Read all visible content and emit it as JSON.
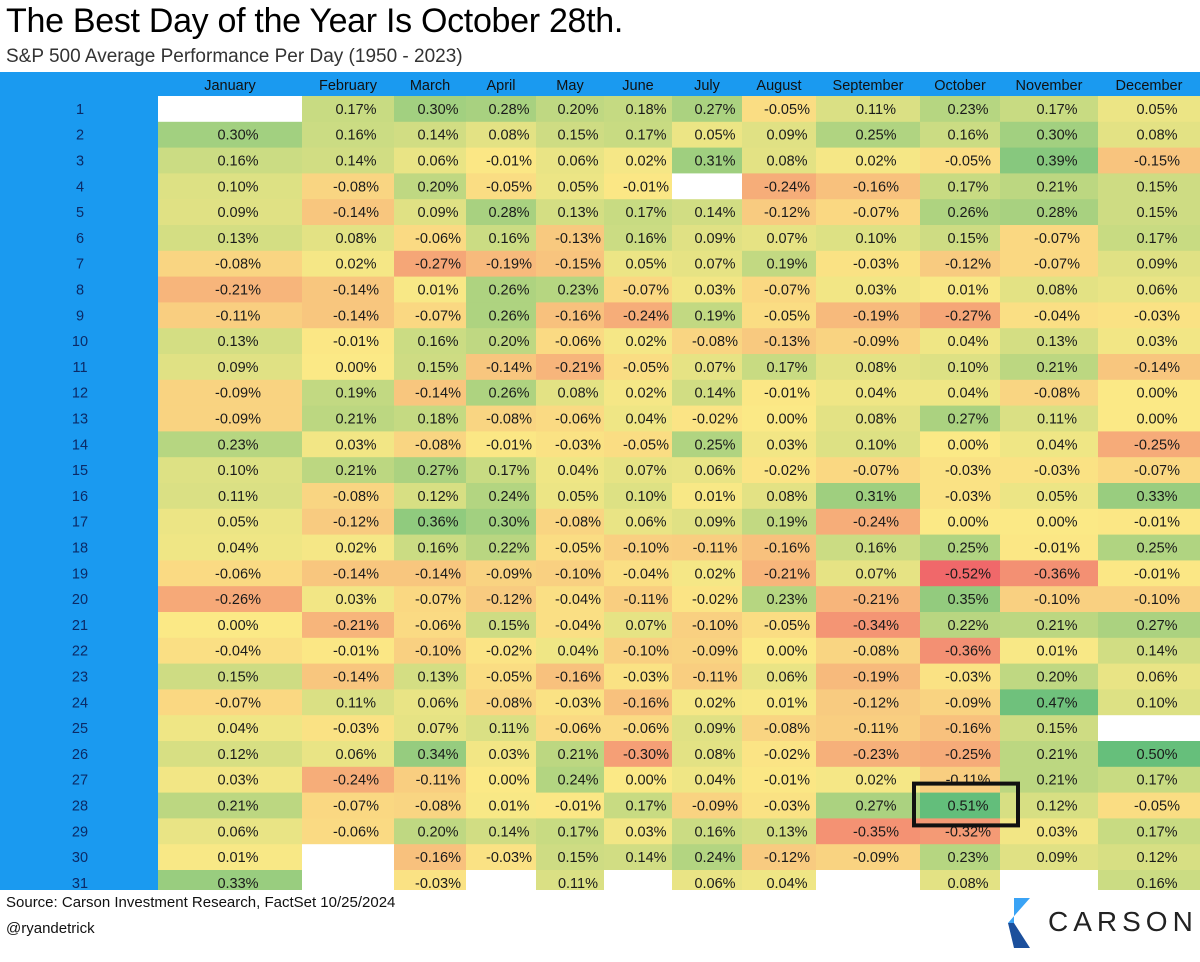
{
  "title": "The Best Day of the Year Is October 28th.",
  "subtitle": "S&P 500 Average Performance Per Day (1950 - 2023)",
  "source": "Source: Carson Investment Research, FactSet 10/25/2024",
  "handle": "@ryandetrick",
  "logo_text": "CARSON",
  "colors": {
    "day_column": "#1a9af0",
    "header_band": "#1a9af0",
    "negative": "#f0686a",
    "neutral": "#fbe986",
    "positive": "#63be7b",
    "highlight_box": "#111111"
  },
  "chart_data": {
    "type": "heatmap",
    "title": "The Best Day of the Year Is October 28th.",
    "subtitle": "S&P 500 Average Performance Per Day (1950 - 2023)",
    "columns": [
      "January",
      "February",
      "March",
      "April",
      "May",
      "June",
      "July",
      "August",
      "September",
      "October",
      "November",
      "December"
    ],
    "rows": [
      "1",
      "2",
      "3",
      "4",
      "5",
      "6",
      "7",
      "8",
      "9",
      "10",
      "11",
      "12",
      "13",
      "14",
      "15",
      "16",
      "17",
      "18",
      "19",
      "20",
      "21",
      "22",
      "23",
      "24",
      "25",
      "26",
      "27",
      "28",
      "29",
      "30",
      "31"
    ],
    "values": [
      [
        null,
        0.17,
        0.3,
        0.28,
        0.2,
        0.18,
        0.27,
        -0.05,
        0.11,
        0.23,
        0.17,
        0.05
      ],
      [
        0.3,
        0.16,
        0.14,
        0.08,
        0.15,
        0.17,
        0.05,
        0.09,
        0.25,
        0.16,
        0.3,
        0.08
      ],
      [
        0.16,
        0.14,
        0.06,
        -0.01,
        0.06,
        0.02,
        0.31,
        0.08,
        0.02,
        -0.05,
        0.39,
        -0.15
      ],
      [
        0.1,
        -0.08,
        0.2,
        -0.05,
        0.05,
        -0.01,
        null,
        -0.24,
        -0.16,
        0.17,
        0.21,
        0.15
      ],
      [
        0.09,
        -0.14,
        0.09,
        0.28,
        0.13,
        0.17,
        0.14,
        -0.12,
        -0.07,
        0.26,
        0.28,
        0.15
      ],
      [
        0.13,
        0.08,
        -0.06,
        0.16,
        -0.13,
        0.16,
        0.09,
        0.07,
        0.1,
        0.15,
        -0.07,
        0.17
      ],
      [
        -0.08,
        0.02,
        -0.27,
        -0.19,
        -0.15,
        0.05,
        0.07,
        0.19,
        -0.03,
        -0.12,
        -0.07,
        0.09
      ],
      [
        -0.21,
        -0.14,
        0.01,
        0.26,
        0.23,
        -0.07,
        0.03,
        -0.07,
        0.03,
        0.01,
        0.08,
        0.06
      ],
      [
        -0.11,
        -0.14,
        -0.07,
        0.26,
        -0.16,
        -0.24,
        0.19,
        -0.05,
        -0.19,
        -0.27,
        -0.04,
        -0.03
      ],
      [
        0.13,
        -0.01,
        0.16,
        0.2,
        -0.06,
        0.02,
        -0.08,
        -0.13,
        -0.09,
        0.04,
        0.13,
        0.03
      ],
      [
        0.09,
        0.0,
        0.15,
        -0.14,
        -0.21,
        -0.05,
        0.07,
        0.17,
        0.08,
        0.1,
        0.21,
        -0.14
      ],
      [
        -0.09,
        0.19,
        -0.14,
        0.26,
        0.08,
        0.02,
        0.14,
        -0.01,
        0.04,
        0.04,
        -0.08,
        0.0
      ],
      [
        -0.09,
        0.21,
        0.18,
        -0.08,
        -0.06,
        0.04,
        -0.02,
        0.0,
        0.08,
        0.27,
        0.11,
        0.0
      ],
      [
        0.23,
        0.03,
        -0.08,
        -0.01,
        -0.03,
        -0.05,
        0.25,
        0.03,
        0.1,
        0.0,
        0.04,
        -0.25
      ],
      [
        0.1,
        0.21,
        0.27,
        0.17,
        0.04,
        0.07,
        0.06,
        -0.02,
        -0.07,
        -0.03,
        -0.03,
        -0.07
      ],
      [
        0.11,
        -0.08,
        0.12,
        0.24,
        0.05,
        0.1,
        0.01,
        0.08,
        0.31,
        -0.03,
        0.05,
        0.33
      ],
      [
        0.05,
        -0.12,
        0.36,
        0.3,
        -0.08,
        0.06,
        0.09,
        0.19,
        -0.24,
        0.0,
        0.0,
        -0.01
      ],
      [
        0.04,
        0.02,
        0.16,
        0.22,
        -0.05,
        -0.1,
        -0.11,
        -0.16,
        0.16,
        0.25,
        -0.01,
        0.25
      ],
      [
        -0.06,
        -0.14,
        -0.14,
        -0.09,
        -0.1,
        -0.04,
        0.02,
        -0.21,
        0.07,
        -0.52,
        -0.36,
        -0.01
      ],
      [
        -0.26,
        0.03,
        -0.07,
        -0.12,
        -0.04,
        -0.11,
        -0.02,
        0.23,
        -0.21,
        0.35,
        -0.1,
        -0.1
      ],
      [
        0.0,
        -0.21,
        -0.06,
        0.15,
        -0.04,
        0.07,
        -0.1,
        -0.05,
        -0.34,
        0.22,
        0.21,
        0.27
      ],
      [
        -0.04,
        -0.01,
        -0.1,
        -0.02,
        0.04,
        -0.1,
        -0.09,
        0.0,
        -0.08,
        -0.36,
        0.01,
        0.14
      ],
      [
        0.15,
        -0.14,
        0.13,
        -0.05,
        -0.16,
        -0.03,
        -0.11,
        0.06,
        -0.19,
        -0.03,
        0.2,
        0.06
      ],
      [
        -0.07,
        0.11,
        0.06,
        -0.08,
        -0.03,
        -0.16,
        0.02,
        0.01,
        -0.12,
        -0.09,
        0.47,
        0.1
      ],
      [
        0.04,
        -0.03,
        0.07,
        0.11,
        -0.06,
        -0.06,
        0.09,
        -0.08,
        -0.11,
        -0.16,
        0.15,
        null
      ],
      [
        0.12,
        0.06,
        0.34,
        0.03,
        0.21,
        -0.3,
        0.08,
        -0.02,
        -0.23,
        -0.25,
        0.21,
        0.5
      ],
      [
        0.03,
        -0.24,
        -0.11,
        0.0,
        0.24,
        0.0,
        0.04,
        -0.01,
        0.02,
        -0.11,
        0.21,
        0.17
      ],
      [
        0.21,
        -0.07,
        -0.08,
        0.01,
        -0.01,
        0.17,
        -0.09,
        -0.03,
        0.27,
        0.51,
        0.12,
        -0.05
      ],
      [
        0.06,
        -0.06,
        0.2,
        0.14,
        0.17,
        0.03,
        0.16,
        0.13,
        -0.35,
        -0.32,
        0.03,
        0.17
      ],
      [
        0.01,
        null,
        -0.16,
        -0.03,
        0.15,
        0.14,
        0.24,
        -0.12,
        -0.09,
        0.23,
        0.09,
        0.12
      ],
      [
        0.33,
        null,
        -0.03,
        null,
        0.11,
        null,
        0.06,
        0.04,
        null,
        0.08,
        null,
        0.16
      ]
    ],
    "value_format": "percent",
    "color_scale": {
      "min": -0.52,
      "mid": 0.0,
      "max": 0.51,
      "low_color": "#f0686a",
      "mid_color": "#fbe986",
      "high_color": "#63be7b"
    },
    "highlight": {
      "row": "28",
      "column": "October",
      "value": 0.51
    }
  }
}
